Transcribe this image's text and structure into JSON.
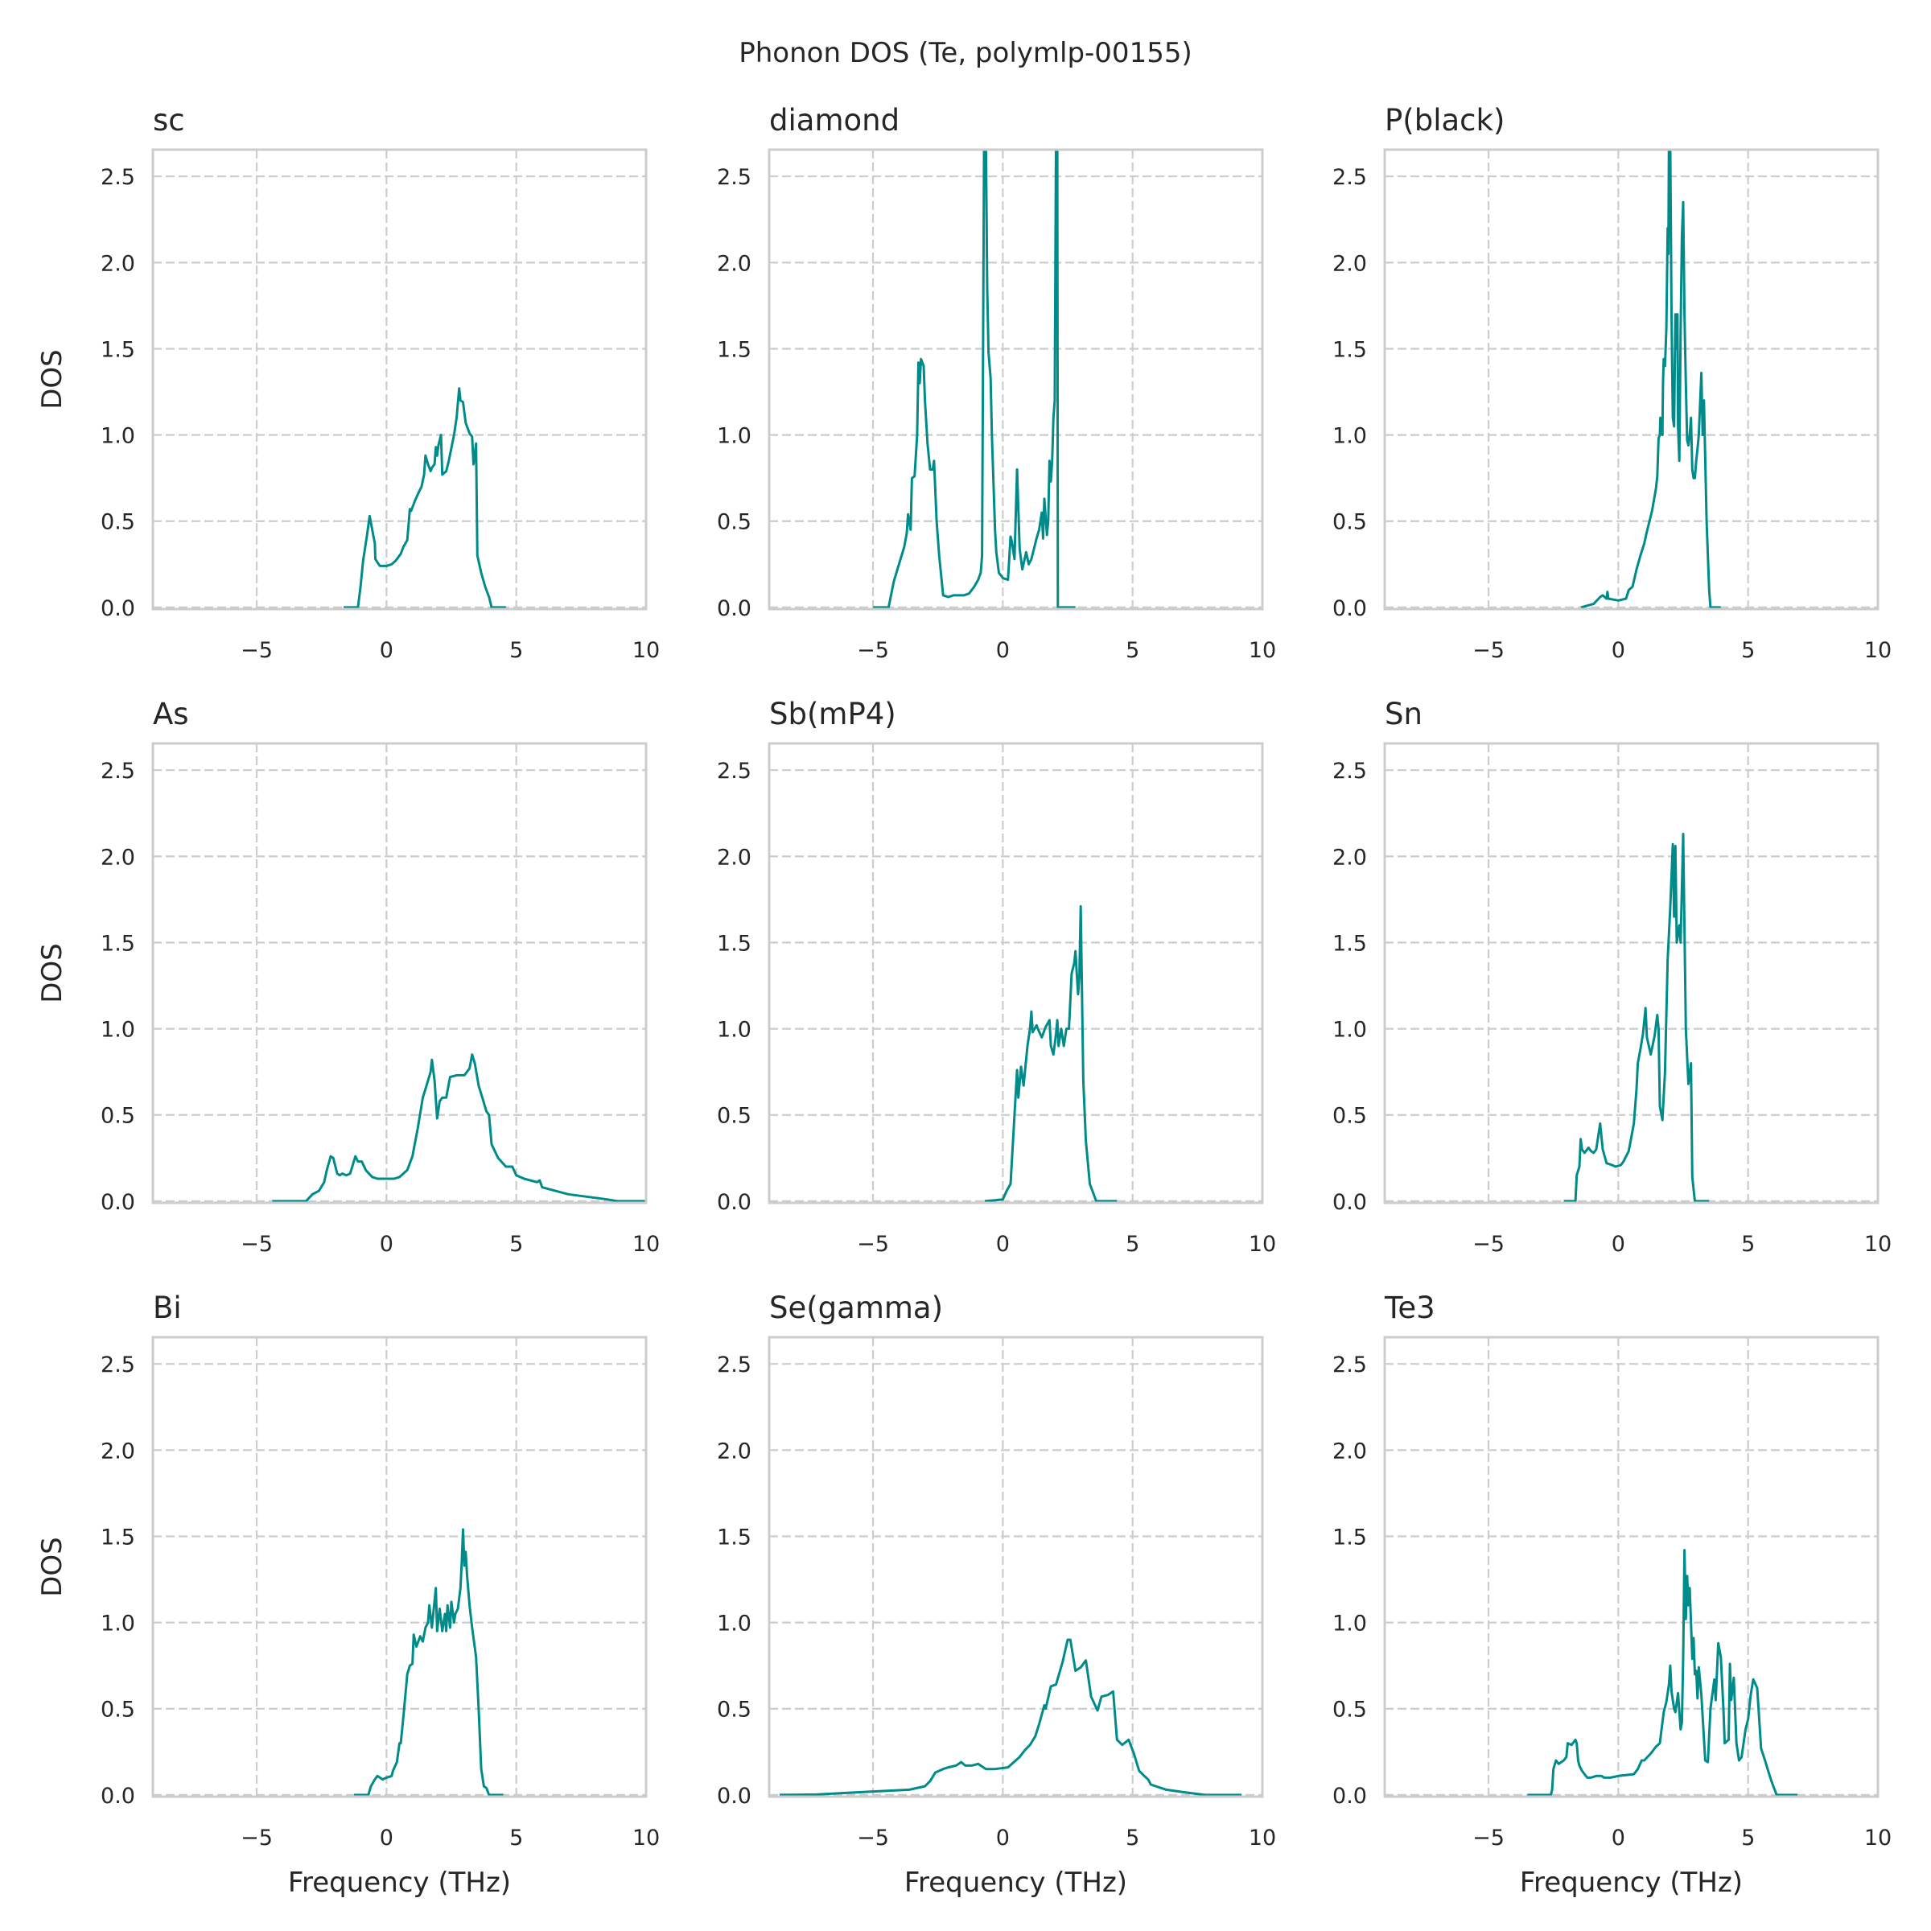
{
  "figure": {
    "title": "Phonon DOS (Te, polymlp-00155)",
    "line_color": "#008b8b",
    "grid_color": "#cccccc",
    "spine_color": "#cccccc"
  },
  "chart_data": {
    "type": "line",
    "title": "Phonon DOS (Te, polymlp-00155)",
    "layout": "3x3 grid",
    "shared": {
      "xlabel": "Frequency (THz)",
      "ylabel": "DOS",
      "xlim": [
        -9,
        10
      ],
      "ylim": [
        -0.01,
        2.655
      ],
      "xticks": [
        -5,
        0,
        5,
        10
      ],
      "xtick_labels": [
        "−5",
        "0",
        "5",
        "10"
      ],
      "yticks": [
        0.0,
        0.5,
        1.0,
        1.5,
        2.0,
        2.5
      ],
      "ytick_labels": [
        "0.0",
        "0.5",
        "1.0",
        "1.5",
        "2.0",
        "2.5"
      ],
      "grid": true,
      "grid_style": "dashed"
    },
    "panels": [
      {
        "title": "sc",
        "x": [
          -1.65,
          -1.1,
          -1.0,
          -0.9,
          -0.75,
          -0.65,
          -0.45,
          -0.43,
          -0.3,
          -0.25,
          0.0,
          0.2,
          0.35,
          0.55,
          0.65,
          0.8,
          0.9,
          0.95,
          1.1,
          1.25,
          1.35,
          1.45,
          1.5,
          1.6,
          1.7,
          1.75,
          1.85,
          1.9,
          1.95,
          2.0,
          2.1,
          2.15,
          2.3,
          2.4,
          2.6,
          2.7,
          2.8,
          2.85,
          2.95,
          3.05,
          3.2,
          3.3,
          3.35,
          3.45,
          3.5,
          3.65,
          3.8,
          3.95,
          4.0,
          4.05,
          4.6
        ],
        "y": [
          0,
          0,
          0.12,
          0.27,
          0.42,
          0.53,
          0.37,
          0.28,
          0.25,
          0.24,
          0.24,
          0.25,
          0.27,
          0.31,
          0.35,
          0.39,
          0.57,
          0.56,
          0.62,
          0.67,
          0.7,
          0.77,
          0.88,
          0.83,
          0.79,
          0.81,
          0.83,
          0.93,
          0.88,
          0.94,
          1.0,
          0.77,
          0.79,
          0.85,
          1.0,
          1.1,
          1.27,
          1.2,
          1.19,
          1.07,
          1.01,
          0.99,
          0.83,
          0.95,
          0.3,
          0.2,
          0.12,
          0.06,
          0.03,
          0.0,
          0.0
        ]
      },
      {
        "title": "diamond",
        "x": [
          -5.0,
          -4.4,
          -4.2,
          -4.0,
          -3.8,
          -3.7,
          -3.65,
          -3.55,
          -3.5,
          -3.4,
          -3.3,
          -3.25,
          -3.2,
          -3.15,
          -3.05,
          -3.0,
          -2.9,
          -2.8,
          -2.7,
          -2.65,
          -2.55,
          -2.45,
          -2.3,
          -2.1,
          -1.9,
          -1.5,
          -1.3,
          -1.1,
          -0.95,
          -0.85,
          -0.8,
          -0.72,
          -0.65,
          -0.6,
          -0.55,
          -0.47,
          -0.42,
          -0.3,
          -0.25,
          -0.15,
          0.0,
          0.2,
          0.3,
          0.35,
          0.45,
          0.55,
          0.65,
          0.75,
          0.9,
          1.0,
          1.1,
          1.3,
          1.4,
          1.5,
          1.55,
          1.6,
          1.7,
          1.75,
          1.8,
          1.85,
          1.9,
          1.95,
          2.0,
          2.05,
          2.1,
          2.12,
          2.8
        ],
        "y": [
          0,
          0,
          0.15,
          0.25,
          0.35,
          0.43,
          0.54,
          0.45,
          0.75,
          0.76,
          1.0,
          1.42,
          1.3,
          1.44,
          1.4,
          1.2,
          0.95,
          0.8,
          0.8,
          0.85,
          0.5,
          0.3,
          0.07,
          0.06,
          0.07,
          0.07,
          0.08,
          0.12,
          0.16,
          0.2,
          0.3,
          2.7,
          2.7,
          1.85,
          1.48,
          1.33,
          1.0,
          0.45,
          0.32,
          0.2,
          0.17,
          0.16,
          0.41,
          0.38,
          0.28,
          0.8,
          0.34,
          0.22,
          0.32,
          0.25,
          0.28,
          0.4,
          0.45,
          0.55,
          0.4,
          0.63,
          0.42,
          0.5,
          0.85,
          0.73,
          0.85,
          1.1,
          1.2,
          2.7,
          2.7,
          0.0,
          0.0
        ]
      },
      {
        "title": "P(black)",
        "x": [
          -1.44,
          -0.95,
          -0.7,
          -0.6,
          -0.45,
          -0.42,
          -0.38,
          0.0,
          0.3,
          0.4,
          0.55,
          0.7,
          0.85,
          1.0,
          1.1,
          1.3,
          1.45,
          1.5,
          1.55,
          1.6,
          1.62,
          1.7,
          1.72,
          1.75,
          1.8,
          1.85,
          1.9,
          1.93,
          1.95,
          2.0,
          2.05,
          2.1,
          2.15,
          2.2,
          2.25,
          2.28,
          2.3,
          2.35,
          2.4,
          2.45,
          2.5,
          2.55,
          2.6,
          2.65,
          2.7,
          2.75,
          2.8,
          2.85,
          2.9,
          2.95,
          3.0,
          3.05,
          3.1,
          3.2,
          3.25,
          3.3,
          3.4,
          3.5,
          3.55,
          3.95
        ],
        "y": [
          0,
          0.02,
          0.06,
          0.07,
          0.05,
          0.09,
          0.05,
          0.04,
          0.05,
          0.1,
          0.12,
          0.22,
          0.3,
          0.37,
          0.44,
          0.56,
          0.69,
          0.76,
          0.98,
          1.0,
          1.1,
          1.0,
          1.3,
          1.44,
          1.4,
          1.62,
          2.2,
          2.05,
          2.7,
          2.7,
          1.7,
          1.1,
          1.05,
          1.7,
          1.5,
          1.7,
          1.05,
          0.85,
          1.6,
          2.15,
          2.35,
          1.7,
          1.3,
          0.97,
          0.94,
          1.0,
          1.1,
          0.8,
          0.75,
          0.75,
          0.85,
          0.92,
          1.0,
          1.36,
          1.0,
          1.2,
          0.5,
          0.1,
          0.0,
          0.0
        ]
      },
      {
        "title": "As",
        "x": [
          -4.4,
          -3.1,
          -2.85,
          -2.6,
          -2.4,
          -2.3,
          -2.15,
          -2.05,
          -1.9,
          -1.8,
          -1.7,
          -1.55,
          -1.4,
          -1.2,
          -1.1,
          -0.95,
          -0.8,
          -0.55,
          -0.35,
          0.3,
          0.5,
          0.8,
          1.0,
          1.2,
          1.4,
          1.6,
          1.7,
          1.75,
          1.85,
          1.95,
          2.05,
          2.15,
          2.3,
          2.45,
          2.7,
          3.0,
          3.2,
          3.3,
          3.4,
          3.55,
          3.75,
          3.85,
          3.95,
          4.05,
          4.3,
          4.6,
          4.85,
          5.0,
          5.3,
          5.8,
          5.9,
          6.0,
          7.0,
          8.5,
          8.9,
          10.0
        ],
        "y": [
          0,
          0,
          0.04,
          0.06,
          0.11,
          0.18,
          0.26,
          0.25,
          0.16,
          0.15,
          0.16,
          0.15,
          0.16,
          0.26,
          0.23,
          0.23,
          0.18,
          0.14,
          0.13,
          0.13,
          0.14,
          0.18,
          0.26,
          0.42,
          0.6,
          0.7,
          0.75,
          0.82,
          0.7,
          0.48,
          0.58,
          0.6,
          0.6,
          0.72,
          0.73,
          0.73,
          0.77,
          0.85,
          0.8,
          0.67,
          0.57,
          0.52,
          0.5,
          0.33,
          0.25,
          0.2,
          0.2,
          0.15,
          0.13,
          0.11,
          0.12,
          0.08,
          0.04,
          0.01,
          0.0,
          0.0
        ]
      },
      {
        "title": "Sb(mP4)",
        "x": [
          -0.7,
          -0.3,
          0.0,
          0.15,
          0.3,
          0.55,
          0.6,
          0.7,
          0.8,
          0.95,
          1.05,
          1.1,
          1.15,
          1.3,
          1.35,
          1.5,
          1.65,
          1.8,
          1.85,
          1.95,
          2.05,
          2.1,
          2.15,
          2.25,
          2.35,
          2.45,
          2.55,
          2.65,
          2.75,
          2.8,
          2.85,
          2.9,
          2.95,
          3.0,
          3.1,
          3.2,
          3.35,
          3.6,
          4.4
        ],
        "y": [
          0,
          0.005,
          0.01,
          0.06,
          0.1,
          0.76,
          0.6,
          0.78,
          0.67,
          0.9,
          1.0,
          1.1,
          0.98,
          1.02,
          1.0,
          0.95,
          1.01,
          1.05,
          0.9,
          0.85,
          0.97,
          1.05,
          0.9,
          1.0,
          0.9,
          1.0,
          1.0,
          1.32,
          1.38,
          1.45,
          1.32,
          1.2,
          1.3,
          1.71,
          0.7,
          0.35,
          0.1,
          0.0,
          0.0
        ]
      },
      {
        "title": "Sn",
        "x": [
          -2.1,
          -1.65,
          -1.6,
          -1.5,
          -1.45,
          -1.4,
          -1.3,
          -1.15,
          -1.05,
          -0.95,
          -0.85,
          -0.7,
          -0.6,
          -0.45,
          -0.25,
          -0.1,
          0.1,
          0.2,
          0.4,
          0.6,
          0.7,
          0.75,
          0.85,
          0.95,
          1.05,
          1.1,
          1.25,
          1.4,
          1.5,
          1.55,
          1.6,
          1.7,
          1.8,
          1.9,
          2.0,
          2.1,
          2.15,
          2.2,
          2.25,
          2.35,
          2.4,
          2.5,
          2.6,
          2.7,
          2.8,
          2.85,
          2.95,
          3.5
        ],
        "y": [
          0,
          0,
          0.15,
          0.2,
          0.36,
          0.3,
          0.28,
          0.31,
          0.29,
          0.28,
          0.3,
          0.45,
          0.3,
          0.22,
          0.21,
          0.2,
          0.21,
          0.23,
          0.29,
          0.45,
          0.65,
          0.8,
          0.88,
          0.97,
          1.12,
          0.95,
          0.85,
          0.96,
          1.08,
          1.0,
          0.55,
          0.47,
          0.75,
          1.4,
          1.7,
          2.07,
          1.65,
          2.06,
          1.5,
          1.6,
          1.5,
          2.13,
          1.0,
          0.68,
          0.8,
          0.14,
          0.0,
          0.0
        ]
      },
      {
        "title": "Bi",
        "x": [
          -1.25,
          -0.7,
          -0.6,
          -0.45,
          -0.35,
          -0.25,
          -0.15,
          0.0,
          0.2,
          0.25,
          0.4,
          0.5,
          0.55,
          0.65,
          0.8,
          0.9,
          1.0,
          1.05,
          1.15,
          1.3,
          1.4,
          1.5,
          1.6,
          1.65,
          1.75,
          1.9,
          1.95,
          2.05,
          2.15,
          2.25,
          2.3,
          2.35,
          2.45,
          2.5,
          2.6,
          2.65,
          2.75,
          2.85,
          2.9,
          2.95,
          3.0,
          3.05,
          3.1,
          3.2,
          3.3,
          3.45,
          3.55,
          3.65,
          3.75,
          3.85,
          3.95,
          4.5
        ],
        "y": [
          0,
          0,
          0.05,
          0.09,
          0.11,
          0.1,
          0.09,
          0.1,
          0.11,
          0.14,
          0.19,
          0.3,
          0.3,
          0.45,
          0.7,
          0.75,
          0.76,
          0.93,
          0.86,
          0.92,
          0.89,
          0.97,
          1.0,
          1.1,
          0.97,
          1.2,
          0.95,
          1.08,
          0.95,
          1.05,
          0.95,
          1.1,
          0.97,
          1.12,
          1.0,
          1.05,
          1.08,
          1.2,
          1.35,
          1.54,
          1.33,
          1.41,
          1.28,
          1.1,
          0.97,
          0.8,
          0.5,
          0.15,
          0.05,
          0.04,
          0.0,
          0.0
        ]
      },
      {
        "title": "Se(gamma)",
        "x": [
          -8.6,
          -7.2,
          -5.0,
          -3.6,
          -3.0,
          -2.8,
          -2.6,
          -2.3,
          -2.1,
          -1.8,
          -1.6,
          -1.45,
          -1.2,
          -0.95,
          -0.65,
          -0.3,
          0.2,
          0.5,
          0.65,
          0.85,
          1.05,
          1.25,
          1.4,
          1.6,
          1.65,
          1.85,
          2.05,
          2.3,
          2.5,
          2.6,
          2.8,
          3.0,
          3.2,
          3.4,
          3.65,
          3.8,
          4.05,
          4.25,
          4.4,
          4.6,
          4.85,
          5.05,
          5.25,
          5.45,
          5.6,
          5.7,
          6.3,
          7.0,
          7.8,
          9.2
        ],
        "y": [
          0,
          0.002,
          0.02,
          0.03,
          0.05,
          0.08,
          0.13,
          0.15,
          0.16,
          0.17,
          0.19,
          0.17,
          0.17,
          0.18,
          0.15,
          0.15,
          0.16,
          0.2,
          0.22,
          0.26,
          0.29,
          0.34,
          0.41,
          0.52,
          0.5,
          0.63,
          0.64,
          0.77,
          0.9,
          0.9,
          0.72,
          0.74,
          0.78,
          0.57,
          0.49,
          0.57,
          0.58,
          0.6,
          0.32,
          0.29,
          0.32,
          0.24,
          0.14,
          0.11,
          0.09,
          0.06,
          0.03,
          0.015,
          0.0,
          0.0
        ]
      },
      {
        "title": "Te3",
        "x": [
          -3.5,
          -2.6,
          -2.55,
          -2.5,
          -2.4,
          -2.3,
          -2.1,
          -2.0,
          -1.95,
          -1.8,
          -1.65,
          -1.6,
          -1.55,
          -1.5,
          -1.4,
          -1.2,
          -1.05,
          -0.85,
          -0.65,
          -0.55,
          -0.3,
          0.0,
          0.6,
          0.75,
          0.9,
          1.0,
          1.25,
          1.45,
          1.6,
          1.65,
          1.75,
          1.85,
          1.95,
          2.0,
          2.05,
          2.15,
          2.2,
          2.3,
          2.4,
          2.45,
          2.5,
          2.55,
          2.6,
          2.65,
          2.7,
          2.75,
          2.8,
          2.85,
          2.9,
          2.95,
          3.0,
          3.05,
          3.1,
          3.2,
          3.35,
          3.45,
          3.55,
          3.7,
          3.75,
          3.85,
          3.95,
          4.05,
          4.1,
          4.25,
          4.3,
          4.35,
          4.45,
          4.55,
          4.65,
          4.75,
          4.9,
          5.0,
          5.1,
          5.2,
          5.35,
          5.5,
          5.65,
          5.75,
          5.9,
          6.0,
          6.1,
          6.9
        ],
        "y": [
          0,
          0,
          0.03,
          0.15,
          0.2,
          0.18,
          0.2,
          0.22,
          0.3,
          0.29,
          0.32,
          0.3,
          0.2,
          0.17,
          0.14,
          0.1,
          0.1,
          0.11,
          0.11,
          0.1,
          0.1,
          0.11,
          0.12,
          0.15,
          0.2,
          0.2,
          0.24,
          0.28,
          0.3,
          0.36,
          0.48,
          0.54,
          0.64,
          0.75,
          0.6,
          0.5,
          0.48,
          0.59,
          0.38,
          0.42,
          0.8,
          1.42,
          1.02,
          1.27,
          1.1,
          1.2,
          1.0,
          0.79,
          0.91,
          0.7,
          0.72,
          0.56,
          0.74,
          0.58,
          0.2,
          0.19,
          0.5,
          0.67,
          0.55,
          0.88,
          0.8,
          0.5,
          0.3,
          0.32,
          0.76,
          0.55,
          0.68,
          0.3,
          0.2,
          0.22,
          0.38,
          0.44,
          0.58,
          0.67,
          0.62,
          0.27,
          0.2,
          0.15,
          0.08,
          0.04,
          0.0,
          0.0
        ]
      }
    ]
  }
}
